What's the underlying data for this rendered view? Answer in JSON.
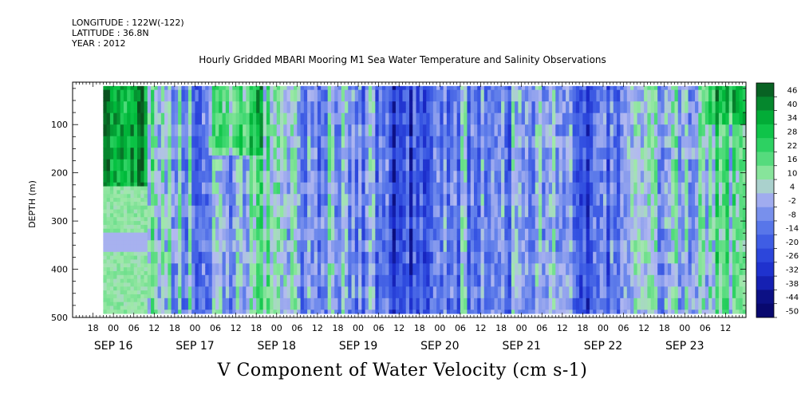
{
  "meta": {
    "longitude": "LONGITUDE : 122W(-122)",
    "latitude": "LATITUDE : 36.8N",
    "year": "YEAR : 2012"
  },
  "chart_data": {
    "type": "heatmap",
    "title": "Hourly Gridded MBARI Mooring M1 Sea Water Temperature and Salinity Observations",
    "xlabel": "V Component of Water Velocity (cm s-1)",
    "ylabel": "DEPTH (m)",
    "x_start": "2012-09-15T12:00",
    "x_end": "2012-09-23T18:00",
    "x_range_hours": [
      0,
      198
    ],
    "ylim": [
      500,
      12
    ],
    "y_ticks": [
      100,
      200,
      300,
      400,
      500
    ],
    "x_hour_ticks": [
      "18",
      "00",
      "06",
      "12",
      "18",
      "00",
      "06",
      "12",
      "18",
      "00",
      "06",
      "12",
      "18",
      "00",
      "06",
      "12",
      "18",
      "00",
      "06",
      "12",
      "18",
      "00",
      "06",
      "12",
      "18",
      "00",
      "06",
      "12",
      "18",
      "00",
      "06",
      "12"
    ],
    "x_date_labels": [
      "SEP 16",
      "SEP 17",
      "SEP 18",
      "SEP 19",
      "SEP 20",
      "SEP 21",
      "SEP 22",
      "SEP 23"
    ],
    "colorbar_levels": [
      46,
      40,
      34,
      28,
      22,
      16,
      10,
      4,
      -2,
      -8,
      -14,
      -20,
      -26,
      -32,
      -38,
      -44,
      -50
    ],
    "colorbar_labels": [
      "46",
      "40",
      "34",
      "28",
      "22",
      "16",
      "10",
      "4",
      "-2",
      "-8",
      "-14",
      "-20",
      "-26",
      "-32",
      "-38",
      "-44",
      "-50"
    ],
    "data_extent": {
      "depth_top": 20,
      "depth_bottom": 487,
      "hour_start": 9,
      "hour_end": 198
    },
    "colors": {
      "strong_positive": "#00c850",
      "weak_positive": "#a0e8a8",
      "weak_negative": "#b4b8ee",
      "strong_negative": "#3c5ae0"
    }
  }
}
